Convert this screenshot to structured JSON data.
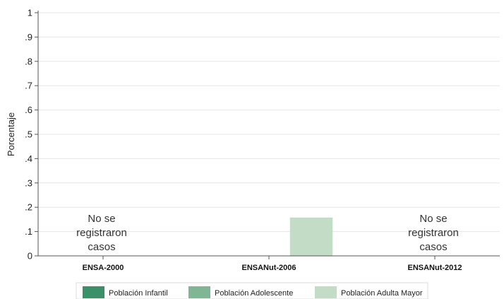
{
  "chart_data": {
    "type": "bar",
    "title": "",
    "xlabel": "",
    "ylabel": "Porcentaje",
    "ylim": [
      0,
      1
    ],
    "yticks": [
      "0",
      ".1",
      ".2",
      ".3",
      ".4",
      ".5",
      ".6",
      ".7",
      ".8",
      ".9",
      "1"
    ],
    "grid": true,
    "legend_position": "bottom",
    "categories": [
      "ENSA-2000",
      "ENSANut-2006",
      "ENSANut-2012"
    ],
    "series": [
      {
        "name": "Población Infantil",
        "color": "#3a9069",
        "values": [
          null,
          0,
          null
        ]
      },
      {
        "name": "Población Adolescente",
        "color": "#80b693",
        "values": [
          null,
          0,
          null
        ]
      },
      {
        "name": "Población Adulta Mayor",
        "color": "#c2dcc6",
        "values": [
          null,
          0.157,
          null
        ]
      }
    ],
    "annotations": [
      {
        "category": "ENSA-2000",
        "lines": [
          "No se",
          "registraron",
          "casos"
        ]
      },
      {
        "category": "ENSANut-2012",
        "lines": [
          "No se",
          "registraron",
          "casos"
        ]
      }
    ]
  }
}
